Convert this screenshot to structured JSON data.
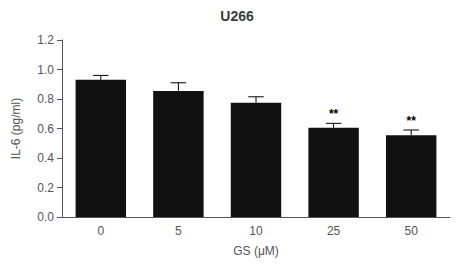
{
  "chart_data": {
    "type": "bar",
    "title": "U266",
    "xlabel": "GS (μM)",
    "ylabel": "IL-6 (pg/ml)",
    "categories": [
      "0",
      "5",
      "10",
      "25",
      "50"
    ],
    "values": [
      0.93,
      0.855,
      0.775,
      0.605,
      0.555
    ],
    "errors": [
      0.03,
      0.055,
      0.04,
      0.03,
      0.035
    ],
    "color": "#111111",
    "ylim": [
      0,
      1.2
    ],
    "yticks": [
      {
        "value": 0,
        "label": "0.0"
      },
      0.2,
      0.4,
      0.6,
      0.8,
      {
        "value": 1.0,
        "label": "1.0"
      },
      1.2
    ],
    "grid": false,
    "annotations": [
      {
        "x": "25",
        "text": "**"
      },
      {
        "x": "50",
        "text": "**"
      }
    ]
  }
}
